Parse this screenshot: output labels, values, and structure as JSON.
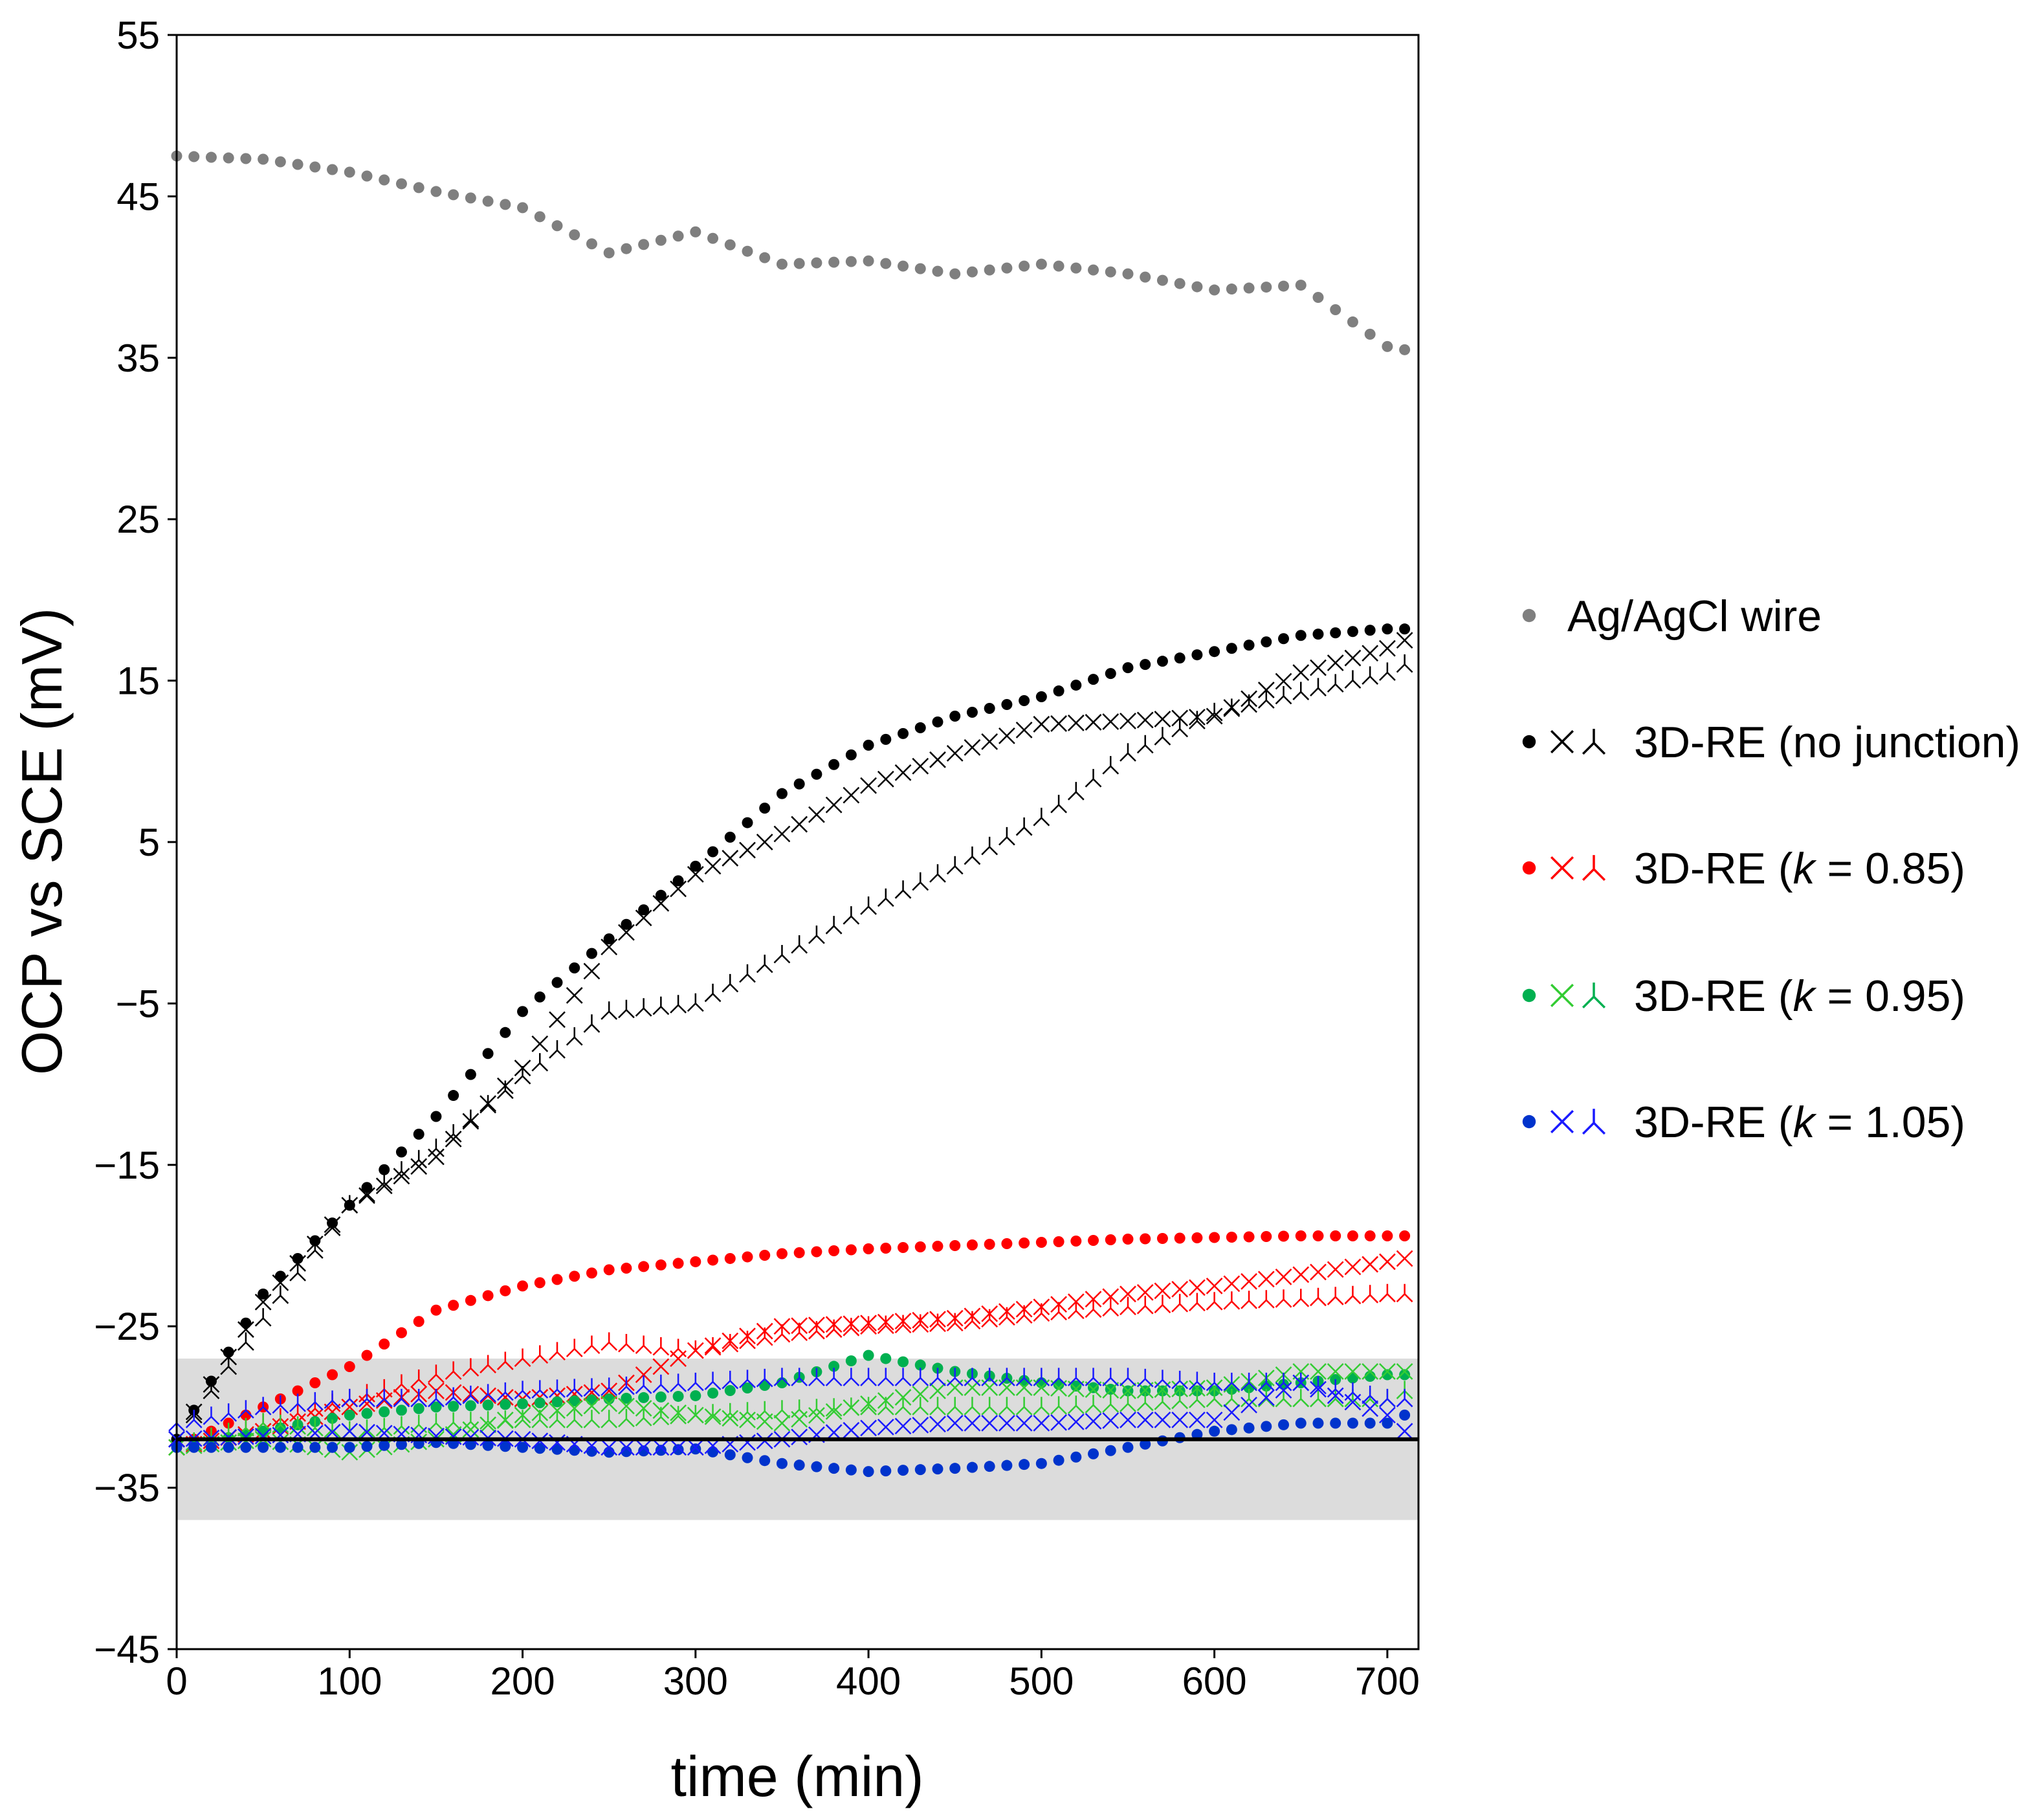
{
  "chart_data": {
    "type": "scatter",
    "xlabel": "time (min)",
    "ylabel": "OCP vs SCE (mV)",
    "xlim": [
      0,
      718
    ],
    "ylim": [
      -45,
      55
    ],
    "xticks": [
      "0",
      "100",
      "200",
      "300",
      "400",
      "500",
      "600",
      "700"
    ],
    "xtick_values": [
      0,
      100,
      200,
      300,
      400,
      500,
      600,
      700
    ],
    "yticks": [
      "−45",
      "−35",
      "−25",
      "−15",
      "−5",
      "5",
      "15",
      "25",
      "35",
      "45",
      "55"
    ],
    "ytick_values": [
      -45,
      -35,
      -25,
      -15,
      -5,
      5,
      15,
      25,
      35,
      45,
      55
    ],
    "grid": false,
    "legend_placement": "right-outside",
    "reference_line": {
      "y": -32,
      "color": "#000000"
    },
    "reference_band": {
      "y_min": -37,
      "y_max": -27,
      "color": "#dcdcdc"
    },
    "x": [
      0,
      50,
      100,
      150,
      200,
      250,
      300,
      350,
      400,
      450,
      500,
      550,
      600,
      650,
      700,
      710
    ],
    "series": [
      {
        "name": "Ag/AgCl wire",
        "group": 0,
        "marker": "dot",
        "color": "#7f7f7f",
        "values": [
          47.5,
          47.3,
          46.5,
          45.3,
          44.3,
          41.5,
          42.8,
          40.8,
          41.0,
          40.2,
          40.8,
          40.2,
          39.2,
          39.5,
          35.7,
          35.5
        ]
      },
      {
        "name": "3D-RE (no junction) dot",
        "group": 1,
        "marker": "dot",
        "color": "#000000",
        "values": [
          -32,
          -23,
          -17.5,
          -12,
          -5.5,
          -1,
          3.5,
          8,
          11,
          12.8,
          14,
          15.8,
          16.8,
          17.8,
          18.2,
          18.2
        ]
      },
      {
        "name": "3D-RE (no junction) x",
        "group": 1,
        "marker": "x",
        "color": "#000000",
        "values": [
          -32,
          -23.5,
          -17.5,
          -14.5,
          -9,
          -1.5,
          3,
          5.5,
          8.5,
          10.5,
          12.3,
          12.5,
          12.8,
          15.5,
          17,
          17.5
        ]
      },
      {
        "name": "3D-RE (no junction) y",
        "group": 1,
        "marker": "y",
        "color": "#000000",
        "values": [
          -32,
          -24.5,
          -17.5,
          -14,
          -9.5,
          -5.5,
          -5,
          -2,
          1,
          3.5,
          6.5,
          10.5,
          13,
          14.3,
          15.5,
          16
        ]
      },
      {
        "name": "3D-RE (k = 0.85) dot",
        "group": 2,
        "marker": "dot",
        "color": "#ff0000",
        "values": [
          -32.5,
          -30,
          -27.5,
          -24,
          -22.5,
          -21.5,
          -21,
          -20.5,
          -20.2,
          -20,
          -19.8,
          -19.6,
          -19.5,
          -19.4,
          -19.4,
          -19.4
        ]
      },
      {
        "name": "3D-RE (k = 0.85) x",
        "group": 2,
        "marker": "x",
        "color": "#ff0000",
        "values": [
          -32.5,
          -31.5,
          -30,
          -29,
          -29.5,
          -29,
          -26.5,
          -25,
          -24.8,
          -24.5,
          -23.8,
          -23,
          -22.5,
          -21.8,
          -21,
          -20.8
        ]
      },
      {
        "name": "3D-RE (k = 0.85) y",
        "group": 2,
        "marker": "y",
        "color": "#ff0000",
        "values": [
          -32.5,
          -31,
          -29.5,
          -28,
          -27,
          -26,
          -26.5,
          -25.5,
          -25,
          -24.8,
          -24.2,
          -23.8,
          -23.5,
          -23.3,
          -23,
          -23
        ]
      },
      {
        "name": "3D-RE (k = 0.95) dot",
        "group": 3,
        "marker": "dot",
        "color": "#00b050",
        "values": [
          -32.5,
          -31.5,
          -30.5,
          -30,
          -29.8,
          -29.5,
          -29.3,
          -28.5,
          -26.8,
          -27.8,
          -28.5,
          -29,
          -29,
          -28.5,
          -28,
          -28
        ]
      },
      {
        "name": "3D-RE (k = 0.95) x",
        "group": 3,
        "marker": "x",
        "color": "#33cc33",
        "values": [
          -32.5,
          -32,
          -32.8,
          -32,
          -30.5,
          -29.8,
          -30.5,
          -31,
          -29.8,
          -28.8,
          -28.8,
          -29,
          -28.8,
          -27.8,
          -27.8,
          -27.8
        ]
      },
      {
        "name": "3D-RE (k = 0.95) y",
        "group": 3,
        "marker": "y",
        "color": "#33cc33",
        "values": [
          -32.5,
          -31,
          -31.5,
          -31,
          -30.8,
          -30.8,
          -30.5,
          -30.2,
          -30,
          -30,
          -30,
          -29.8,
          -29.5,
          -29.5,
          -29.5,
          -29
        ]
      },
      {
        "name": "3D-RE (k = 1.05) dot",
        "group": 4,
        "marker": "dot",
        "color": "#0033cc",
        "values": [
          -32.5,
          -32.5,
          -32.5,
          -32.2,
          -32.5,
          -32.8,
          -32.6,
          -33.5,
          -34,
          -33.8,
          -33.5,
          -32.5,
          -31.5,
          -31,
          -31,
          -30.5
        ]
      },
      {
        "name": "3D-RE (k = 1.05) x",
        "group": 4,
        "marker": "x",
        "color": "#1a1aff",
        "values": [
          -32,
          -31.8,
          -31.5,
          -31.8,
          -32,
          -32.5,
          -32.5,
          -32,
          -31.3,
          -31,
          -31,
          -30.8,
          -30.8,
          -28.5,
          -30.5,
          -31.5
        ]
      },
      {
        "name": "3D-RE (k = 1.05) y",
        "group": 4,
        "marker": "y",
        "color": "#1a1aff",
        "values": [
          -31,
          -30,
          -29.5,
          -29.5,
          -29,
          -28.8,
          -28.5,
          -28.2,
          -28.2,
          -28.2,
          -28.2,
          -28.2,
          -28.5,
          -28.5,
          -29.5,
          -29.5
        ]
      }
    ],
    "legend": [
      {
        "label": "Ag/AgCl wire",
        "markers": [
          "dot"
        ],
        "colors": [
          "#7f7f7f"
        ]
      },
      {
        "label": "3D-RE (no junction)",
        "markers": [
          "dot",
          "x",
          "y"
        ],
        "colors": [
          "#000000",
          "#000000",
          "#000000"
        ]
      },
      {
        "label_prefix": "3D-RE (",
        "label_k": "k",
        "label_suffix": " = 0.85)",
        "markers": [
          "dot",
          "x",
          "y"
        ],
        "colors": [
          "#ff0000",
          "#ff0000",
          "#ff0000"
        ]
      },
      {
        "label_prefix": "3D-RE (",
        "label_k": "k",
        "label_suffix": " = 0.95)",
        "markers": [
          "dot",
          "x",
          "y"
        ],
        "colors": [
          "#00b050",
          "#33cc33",
          "#00b050"
        ]
      },
      {
        "label_prefix": "3D-RE (",
        "label_k": "k",
        "label_suffix": " = 1.05)",
        "markers": [
          "dot",
          "x",
          "y"
        ],
        "colors": [
          "#0033cc",
          "#1a1aff",
          "#1a1aff"
        ]
      }
    ]
  }
}
